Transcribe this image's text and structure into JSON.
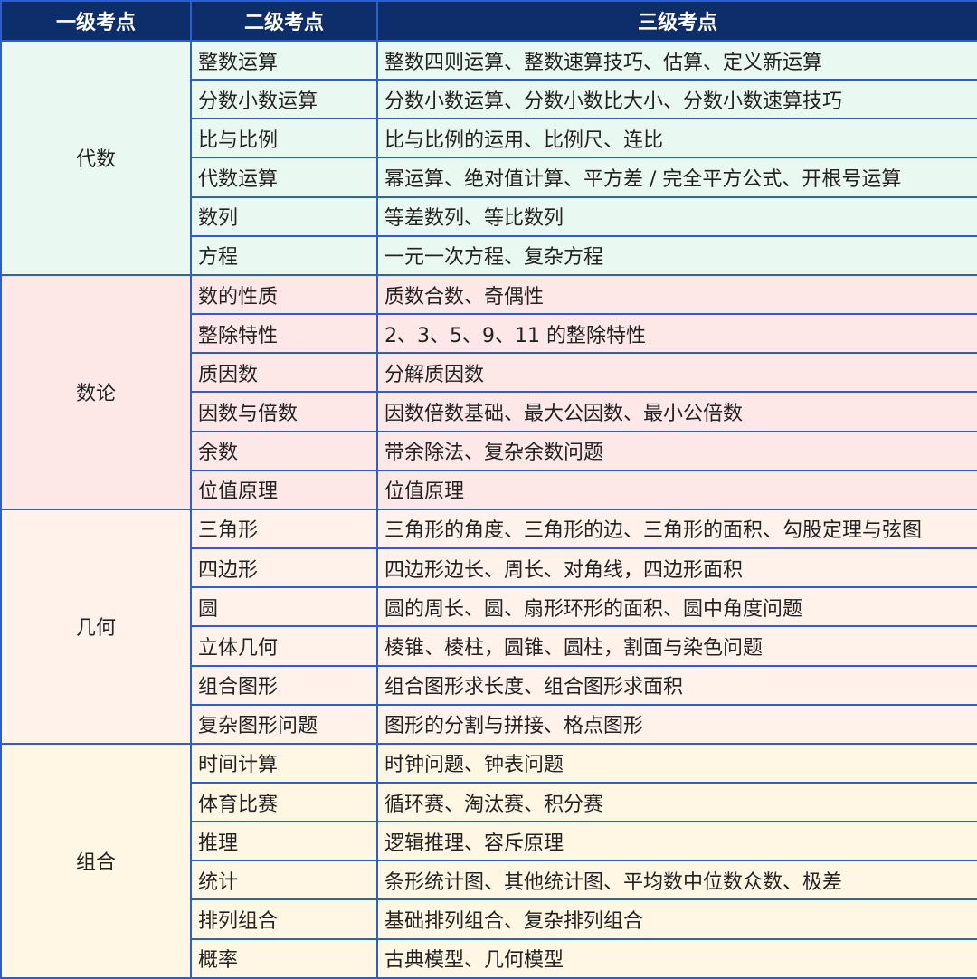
{
  "header": {
    "col1": "一级考点",
    "col2": "二级考点",
    "col3": "三级考点"
  },
  "colors": {
    "header_bg": "#0e2d6b",
    "border": "#2b5fcf",
    "groups": [
      "#e9f8f0",
      "#fde7e7",
      "#fff2ea",
      "#fff7e3"
    ]
  },
  "groups": [
    {
      "name": "代数",
      "rows": [
        {
          "level2": "整数运算",
          "level3": "整数四则运算、整数速算技巧、估算、定义新运算"
        },
        {
          "level2": "分数小数运算",
          "level3": "分数小数运算、分数小数比大小、分数小数速算技巧"
        },
        {
          "level2": "比与比例",
          "level3": "比与比例的运用、比例尺、连比"
        },
        {
          "level2": "代数运算",
          "level3": "幂运算、绝对值计算、平方差 / 完全平方公式、开根号运算"
        },
        {
          "level2": "数列",
          "level3": "等差数列、等比数列"
        },
        {
          "level2": "方程",
          "level3": "一元一次方程、复杂方程"
        }
      ]
    },
    {
      "name": "数论",
      "rows": [
        {
          "level2": "数的性质",
          "level3": "质数合数、奇偶性"
        },
        {
          "level2": "整除特性",
          "level3": "2、3、5、9、11 的整除特性"
        },
        {
          "level2": "质因数",
          "level3": "分解质因数"
        },
        {
          "level2": "因数与倍数",
          "level3": "因数倍数基础、最大公因数、最小公倍数"
        },
        {
          "level2": "余数",
          "level3": "带余除法、复杂余数问题"
        },
        {
          "level2": "位值原理",
          "level3": "位值原理"
        }
      ]
    },
    {
      "name": "几何",
      "rows": [
        {
          "level2": "三角形",
          "level3": "三角形的角度、三角形的边、三角形的面积、勾股定理与弦图"
        },
        {
          "level2": "四边形",
          "level3": "四边形边长、周长、对角线，四边形面积"
        },
        {
          "level2": "圆",
          "level3": "圆的周长、圆、扇形环形的面积、圆中角度问题"
        },
        {
          "level2": "立体几何",
          "level3": "棱锥、棱柱，圆锥、圆柱，割面与染色问题"
        },
        {
          "level2": "组合图形",
          "level3": "组合图形求长度、组合图形求面积"
        },
        {
          "level2": "复杂图形问题",
          "level3": "图形的分割与拼接、格点图形"
        }
      ]
    },
    {
      "name": "组合",
      "rows": [
        {
          "level2": "时间计算",
          "level3": "时钟问题、钟表问题"
        },
        {
          "level2": "体育比赛",
          "level3": "循环赛、淘汰赛、积分赛"
        },
        {
          "level2": "推理",
          "level3": "逻辑推理、容斥原理"
        },
        {
          "level2": "统计",
          "level3": "条形统计图、其他统计图、平均数中位数众数、极差"
        },
        {
          "level2": "排列组合",
          "level3": "基础排列组合、复杂排列组合"
        },
        {
          "level2": "概率",
          "level3": "古典模型、几何模型"
        }
      ]
    }
  ]
}
